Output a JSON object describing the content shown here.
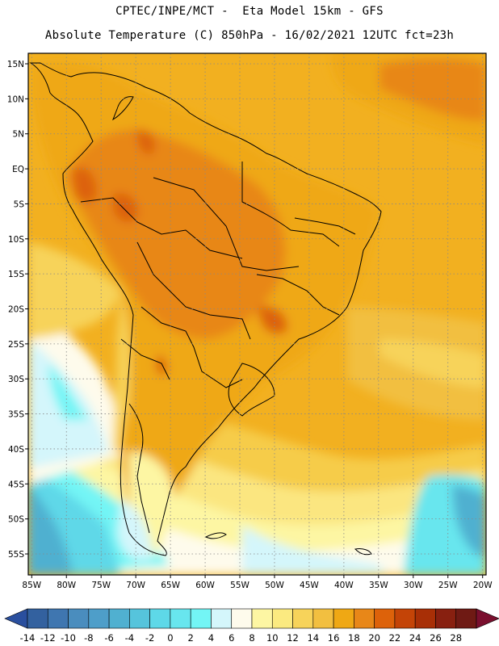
{
  "header": {
    "line1": "CPTEC/INPE/MCT -  Eta Model 15km - GFS",
    "line2": "Absolute Temperature (C) 850hPa - 16/02/2021 12UTC fct=23h"
  },
  "map": {
    "lat_labels": [
      "15N",
      "10N",
      "5N",
      "EQ",
      "5S",
      "10S",
      "15S",
      "20S",
      "25S",
      "30S",
      "35S",
      "40S",
      "45S",
      "50S",
      "55S"
    ],
    "lon_labels": [
      "85W",
      "80W",
      "75W",
      "70W",
      "65W",
      "60W",
      "55W",
      "50W",
      "45W",
      "40W",
      "35W",
      "30W",
      "25W",
      "20W"
    ],
    "lat_values": [
      15,
      10,
      5,
      0,
      -5,
      -10,
      -15,
      -20,
      -25,
      -30,
      -35,
      -40,
      -45,
      -50,
      -55
    ],
    "lon_values": [
      -85,
      -80,
      -75,
      -70,
      -65,
      -60,
      -55,
      -50,
      -45,
      -40,
      -35,
      -30,
      -25,
      -20
    ],
    "extent": {
      "lon_min": -85.5,
      "lon_max": -19.5,
      "lat_min": -58,
      "lat_max": 16.5
    }
  },
  "colorbar": {
    "labels": [
      "-14",
      "-12",
      "-10",
      "-8",
      "-6",
      "-4",
      "-2",
      "0",
      "2",
      "4",
      "6",
      "8",
      "10",
      "12",
      "14",
      "16",
      "18",
      "20",
      "22",
      "24",
      "26",
      "28"
    ],
    "colors": [
      "#2a4f9e",
      "#33619f",
      "#3f76b0",
      "#4a8dbe",
      "#4e9ec9",
      "#50b0d0",
      "#56c4dc",
      "#5ed8e8",
      "#68e6ee",
      "#73f5f5",
      "#d4f6fb",
      "#fefbec",
      "#fdf6a3",
      "#fbea80",
      "#f7d35a",
      "#f2bf40",
      "#efa814",
      "#e88718",
      "#dd620a",
      "#c44407",
      "#a82f06",
      "#882010",
      "#6f1a14",
      "#7a0f2e"
    ]
  }
}
